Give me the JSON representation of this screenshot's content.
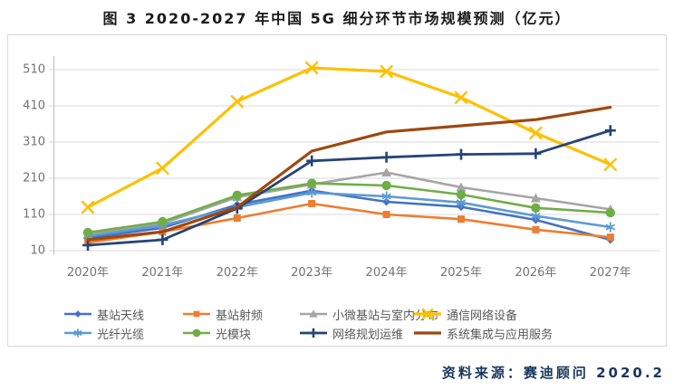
{
  "title": "图 3 2020-2027 年中国 5G 细分环节市场规模预测（亿元）",
  "source_note": "资料来源：赛迪顾问  2020.2",
  "colors": {
    "grid": "#d9d9d9",
    "axis": "#bfbfbf",
    "tick_text": "#737373",
    "legend_text": "#595959",
    "source_text": "#17365d",
    "frame_border": "#d9d9d9"
  },
  "chart_data": {
    "type": "line",
    "title": "图 3 2020-2027 年中国 5G 细分环节市场规模预测（亿元）",
    "unit": "亿元",
    "categories": [
      "2020年",
      "2021年",
      "2022年",
      "2023年",
      "2024年",
      "2025年",
      "2026年",
      "2027年"
    ],
    "y_ticks": [
      10,
      110,
      210,
      310,
      410,
      510
    ],
    "ylim": [
      10,
      560
    ],
    "grid": true,
    "legend_position": "bottom",
    "series": [
      {
        "id": "jizhan-tianxian",
        "name": "基站天线",
        "color": "#4472C4",
        "marker": "diamond",
        "values": [
          45,
          73,
          137,
          176,
          145,
          131,
          95,
          40
        ]
      },
      {
        "id": "jizhan-shepin",
        "name": "基站射频",
        "color": "#ED7D31",
        "marker": "square",
        "values": [
          32,
          62,
          100,
          140,
          110,
          97,
          68,
          47
        ]
      },
      {
        "id": "xiaowei-jizhan",
        "name": "小微基站与室内分布",
        "color": "#A5A5A5",
        "marker": "triangle",
        "values": [
          55,
          85,
          158,
          193,
          226,
          185,
          155,
          124
        ]
      },
      {
        "id": "tongxin-wangluo",
        "name": "通信网络设备",
        "color": "#FFC000",
        "marker": "x",
        "values": [
          130,
          238,
          422,
          515,
          505,
          433,
          335,
          248
        ]
      },
      {
        "id": "guangxian-guanglan",
        "name": "光纤光缆",
        "color": "#5B9BD5",
        "marker": "asterisk",
        "values": [
          50,
          80,
          130,
          170,
          160,
          143,
          106,
          75
        ]
      },
      {
        "id": "guang-mokuai",
        "name": "光模块",
        "color": "#70AD47",
        "marker": "circle",
        "values": [
          60,
          90,
          163,
          196,
          190,
          165,
          128,
          115
        ]
      },
      {
        "id": "wangluo-guihua",
        "name": "网络规划运维",
        "color": "#264478",
        "marker": "plus",
        "values": [
          25,
          40,
          127,
          258,
          268,
          276,
          278,
          342
        ]
      },
      {
        "id": "xitong-jicheng",
        "name": "系统集成与应用服务",
        "color": "#9E480E",
        "marker": "none",
        "values": [
          40,
          62,
          130,
          285,
          338,
          355,
          372,
          406
        ]
      }
    ]
  }
}
